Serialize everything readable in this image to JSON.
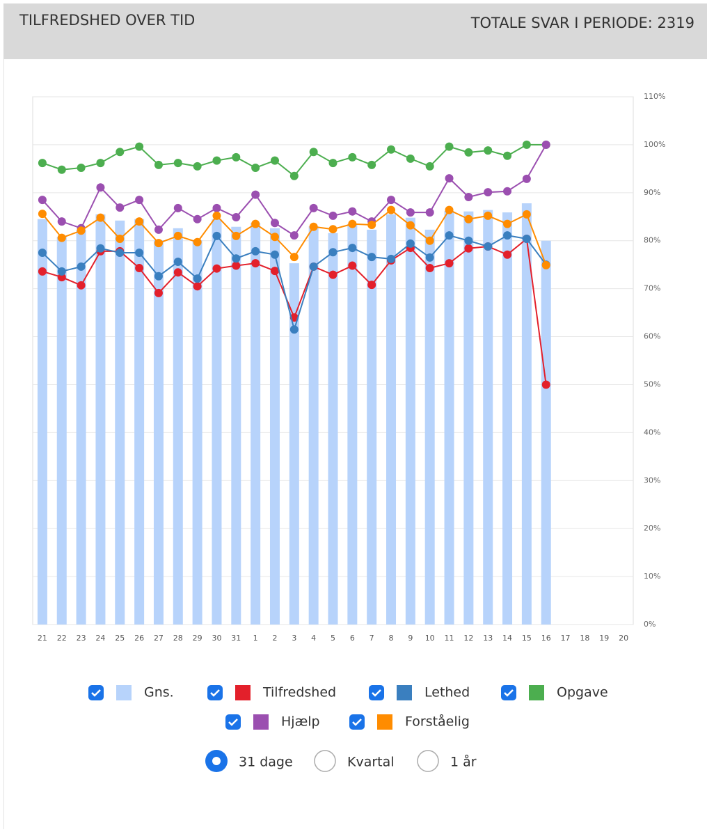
{
  "header": {
    "title": "TILFREDSHED OVER TID",
    "total": "TOTALE SVAR I PERIODE: 2319"
  },
  "chart_data": {
    "type": "bar",
    "categories": [
      "21",
      "22",
      "23",
      "24",
      "25",
      "26",
      "27",
      "28",
      "29",
      "30",
      "31",
      "1",
      "2",
      "3",
      "4",
      "5",
      "6",
      "7",
      "8",
      "9",
      "10",
      "11",
      "12",
      "13",
      "14",
      "15",
      "16",
      "17",
      "18",
      "19",
      "20"
    ],
    "series": [
      {
        "name": "Gns.",
        "type": "bar",
        "color": "#b7d3fb",
        "values": [
          84.5,
          80.8,
          82.3,
          85.5,
          84.2,
          84.5,
          80.1,
          82.6,
          80.1,
          84.5,
          82.9,
          83.7,
          82.6,
          75.3,
          83.0,
          81.6,
          83.5,
          82.3,
          85.5,
          84.8,
          82.3,
          86.2,
          86.1,
          86.4,
          85.9,
          87.8,
          80.0,
          null,
          null,
          null,
          null
        ]
      },
      {
        "name": "Tilfredshed",
        "type": "line",
        "color": "#e3202b",
        "values": [
          73.6,
          72.4,
          70.7,
          77.8,
          77.8,
          74.3,
          69.1,
          73.4,
          70.5,
          74.2,
          74.8,
          75.3,
          73.7,
          64.0,
          74.6,
          72.9,
          74.8,
          70.8,
          75.9,
          78.5,
          74.3,
          75.3,
          78.4,
          78.8,
          77.1,
          80.4,
          50.0,
          null,
          null,
          null,
          null
        ]
      },
      {
        "name": "Lethed",
        "type": "line",
        "color": "#3a7fbf",
        "values": [
          77.5,
          73.6,
          74.6,
          78.4,
          77.5,
          77.5,
          72.6,
          75.6,
          72.1,
          81.0,
          76.3,
          77.8,
          77.1,
          61.5,
          74.6,
          77.6,
          78.5,
          76.6,
          76.2,
          79.4,
          76.5,
          81.1,
          80.0,
          78.8,
          81.1,
          80.4,
          75.0,
          null,
          null,
          null,
          null
        ]
      },
      {
        "name": "Opgave",
        "type": "line",
        "color": "#4cae4f",
        "values": [
          96.2,
          94.8,
          95.2,
          96.2,
          98.5,
          99.6,
          95.8,
          96.2,
          95.5,
          96.7,
          97.4,
          95.2,
          96.7,
          93.5,
          98.5,
          96.2,
          97.4,
          95.8,
          99.0,
          97.1,
          95.5,
          99.6,
          98.4,
          98.8,
          97.7,
          100,
          100,
          null,
          null,
          null,
          null
        ]
      },
      {
        "name": "Hjælp",
        "type": "line",
        "color": "#9b4fb0",
        "values": [
          88.5,
          84.0,
          82.6,
          91.1,
          86.9,
          88.5,
          82.3,
          86.8,
          84.5,
          86.8,
          84.9,
          89.6,
          83.7,
          81.1,
          86.8,
          85.2,
          86.1,
          84.0,
          88.5,
          85.9,
          85.9,
          93.0,
          89.1,
          90.1,
          90.3,
          92.9,
          100,
          null,
          null,
          null,
          null
        ]
      },
      {
        "name": "Forståelig",
        "type": "line",
        "color": "#ff8c00",
        "values": [
          85.6,
          80.6,
          82.1,
          84.8,
          80.4,
          84.0,
          79.5,
          81.0,
          79.7,
          85.2,
          81.0,
          83.5,
          80.8,
          76.6,
          82.9,
          82.4,
          83.5,
          83.3,
          86.4,
          83.2,
          80.0,
          86.4,
          84.5,
          85.2,
          83.5,
          85.5,
          74.9,
          null,
          null,
          null,
          null
        ]
      }
    ],
    "ylim": [
      0,
      110
    ],
    "yticks": [
      {
        "value": 0,
        "label": "0%"
      },
      {
        "value": 10,
        "label": "10%"
      },
      {
        "value": 20,
        "label": "20%"
      },
      {
        "value": 30,
        "label": "30%"
      },
      {
        "value": 40,
        "label": "40%"
      },
      {
        "value": 50,
        "label": "50%"
      },
      {
        "value": 60,
        "label": "60%"
      },
      {
        "value": 70,
        "label": "70%"
      },
      {
        "value": 80,
        "label": "80%"
      },
      {
        "value": 90,
        "label": "90%"
      },
      {
        "value": 100,
        "label": "100%"
      },
      {
        "value": 110,
        "label": "110%"
      }
    ],
    "grid": true
  },
  "period_options": [
    "31 dage",
    "Kvartal",
    "1 år"
  ],
  "period_selected": 0
}
